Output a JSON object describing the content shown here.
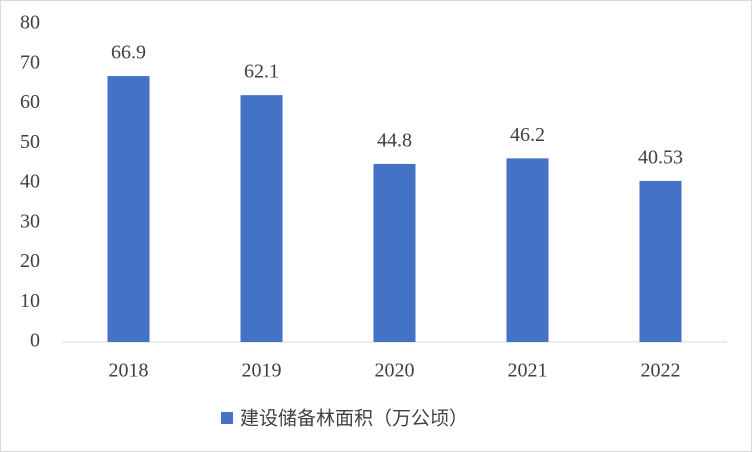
{
  "chart_data": {
    "type": "bar",
    "categories": [
      "2018",
      "2019",
      "2020",
      "2021",
      "2022"
    ],
    "series": [
      {
        "name": "建设储备林面积（万公顷）",
        "color": "#4472c4",
        "values": [
          66.9,
          62.1,
          44.8,
          46.2,
          40.53
        ]
      }
    ],
    "ylim": [
      0,
      80
    ],
    "yticks": [
      0,
      10,
      20,
      30,
      40,
      50,
      60,
      70,
      80
    ],
    "grid": false,
    "legend": "bottom"
  }
}
